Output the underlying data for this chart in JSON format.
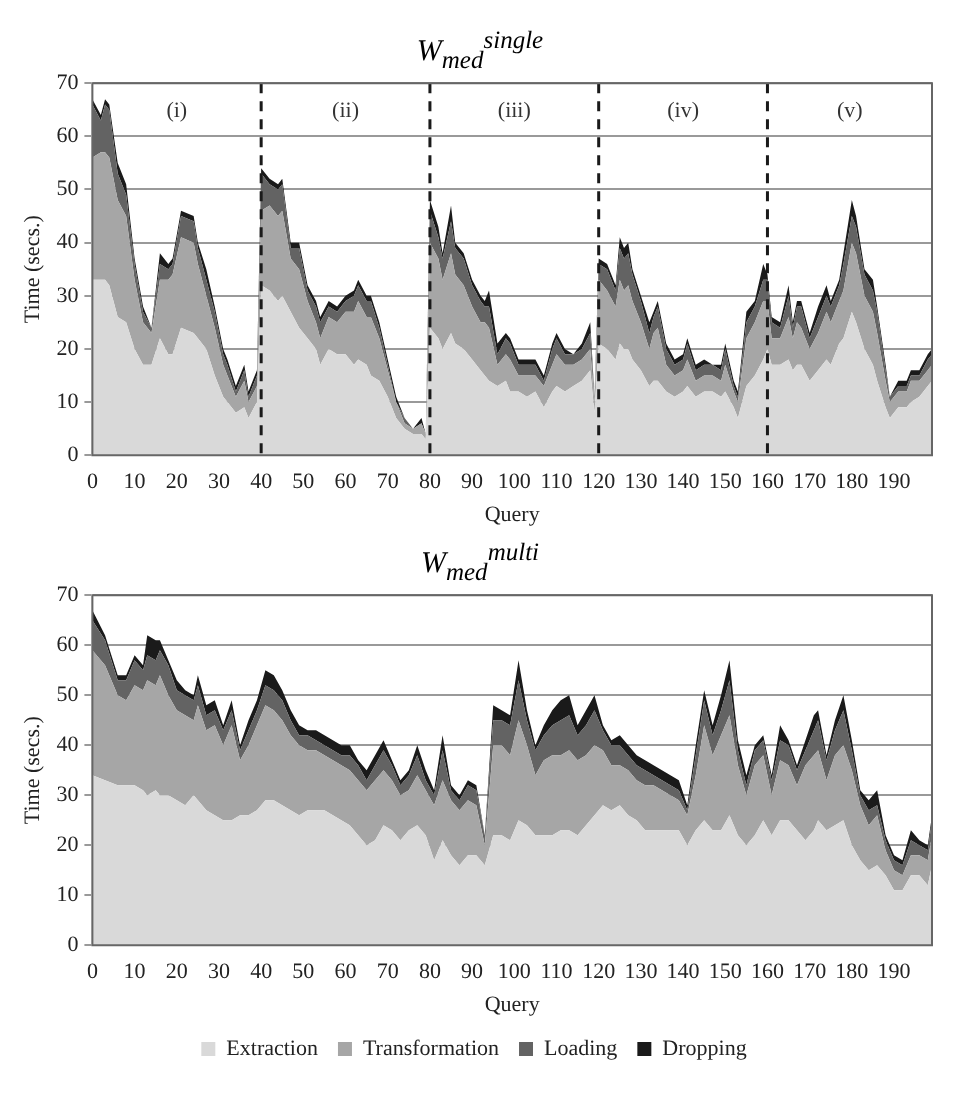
{
  "chart_data": [
    {
      "type": "area",
      "stacked": true,
      "title": "W$_{med}$$^{single}$",
      "xlabel": "Query",
      "ylabel": "Time (secs.)",
      "xlim": [
        0,
        199
      ],
      "xticks": [
        0,
        10,
        20,
        30,
        40,
        50,
        60,
        70,
        80,
        90,
        100,
        110,
        120,
        130,
        140,
        150,
        160,
        170,
        180,
        190
      ],
      "ylim": [
        0,
        70
      ],
      "yticks": [
        0,
        10,
        20,
        30,
        40,
        50,
        60,
        70
      ],
      "grid": "y",
      "legend": false,
      "x": [
        0,
        2,
        3,
        4,
        6,
        8,
        10,
        12,
        14,
        16,
        18,
        19,
        21,
        24,
        25,
        27,
        29,
        31,
        32,
        34,
        36,
        37,
        39,
        40,
        42,
        44,
        45,
        47,
        49,
        51,
        53,
        54,
        56,
        58,
        60,
        62,
        63,
        65,
        66,
        68,
        70,
        72,
        74,
        76,
        78,
        79,
        80,
        82,
        83,
        85,
        86,
        88,
        90,
        92,
        93,
        94,
        96,
        98,
        99,
        101,
        103,
        105,
        107,
        109,
        110,
        112,
        114,
        116,
        118,
        119,
        120,
        122,
        124,
        125,
        126,
        127,
        128,
        130,
        132,
        133,
        134,
        136,
        138,
        140,
        141,
        143,
        145,
        147,
        149,
        150,
        152,
        153,
        155,
        157,
        159,
        160,
        161,
        163,
        165,
        166,
        167,
        168,
        170,
        172,
        174,
        175,
        177,
        178,
        180,
        181,
        183,
        185,
        186,
        188,
        189,
        191,
        193,
        194,
        196,
        198,
        199
      ],
      "series": [
        {
          "color": "#d9d9d9",
          "values": [
            33,
            33,
            33,
            32,
            26,
            25,
            20,
            17,
            17,
            22,
            19,
            19,
            24,
            23,
            22,
            20,
            15,
            11,
            10,
            8,
            9,
            7,
            10,
            32,
            31,
            29,
            30,
            27,
            24,
            22,
            20,
            17,
            20,
            19,
            19,
            17,
            18,
            17,
            15,
            14,
            11,
            7,
            5,
            4,
            4,
            3,
            24,
            22,
            20,
            23,
            21,
            20,
            18,
            16,
            15,
            14,
            13,
            14,
            12,
            12,
            11,
            12,
            9,
            12,
            13,
            12,
            13,
            14,
            16,
            8,
            21,
            20,
            18,
            21,
            20,
            20,
            18,
            16,
            13,
            14,
            14,
            12,
            11,
            12,
            13,
            11,
            12,
            12,
            11,
            12,
            9,
            7,
            13,
            15,
            18,
            20,
            17,
            17,
            18,
            16,
            17,
            17,
            14,
            16,
            18,
            17,
            21,
            22,
            27,
            25,
            20,
            17,
            14,
            9,
            7,
            9,
            9,
            10,
            11,
            13,
            14
          ]
        },
        {
          "color": "#a6a6a6",
          "values": [
            23,
            24,
            24,
            24,
            22,
            20,
            13,
            8,
            6,
            11,
            14,
            15,
            17,
            17,
            14,
            10,
            9,
            6,
            5,
            3,
            5,
            3,
            3,
            14,
            16,
            16,
            16,
            10,
            11,
            7,
            5,
            5,
            6,
            6,
            8,
            10,
            11,
            9,
            11,
            8,
            5,
            3,
            1,
            1,
            2,
            1,
            16,
            15,
            13,
            15,
            13,
            12,
            10,
            9,
            10,
            10,
            4,
            5,
            6,
            3,
            4,
            3,
            4,
            5,
            6,
            5,
            4,
            4,
            4,
            2,
            12,
            11,
            10,
            12,
            11,
            12,
            11,
            9,
            7,
            9,
            10,
            5,
            4,
            4,
            5,
            3,
            3,
            3,
            3,
            5,
            3,
            3,
            9,
            10,
            11,
            9,
            5,
            5,
            8,
            6,
            8,
            7,
            6,
            7,
            9,
            8,
            8,
            9,
            13,
            13,
            10,
            10,
            9,
            5,
            3,
            3,
            3,
            4,
            3,
            3,
            3
          ]
        },
        {
          "color": "#636363",
          "values": [
            10,
            6,
            9,
            9,
            5,
            4,
            3,
            2,
            1,
            3,
            2,
            2,
            4,
            4,
            3,
            3,
            3,
            2,
            2,
            1,
            2,
            1,
            2,
            7,
            4,
            5,
            5,
            2,
            4,
            2,
            3,
            3,
            2,
            2,
            2,
            3,
            3,
            3,
            3,
            2,
            1,
            0,
            1,
            0,
            0,
            0,
            6,
            4,
            4,
            6,
            5,
            5,
            4,
            4,
            3,
            4,
            2,
            3,
            3,
            2,
            2,
            2,
            1,
            3,
            3,
            2,
            2,
            2,
            3,
            1,
            3,
            4,
            3,
            6,
            6,
            6,
            5,
            4,
            3,
            3,
            4,
            3,
            2,
            2,
            3,
            2,
            2,
            2,
            2,
            3,
            1,
            1,
            3,
            3,
            4,
            4,
            3,
            2,
            4,
            2,
            3,
            4,
            2,
            3,
            3,
            3,
            3,
            5,
            5,
            5,
            4,
            4,
            4,
            2,
            1,
            1,
            1,
            1,
            1,
            2,
            2
          ]
        },
        {
          "color": "#1a1a1a",
          "values": [
            1,
            1,
            1,
            1,
            2,
            2,
            1,
            1,
            0,
            2,
            1,
            1,
            1,
            1,
            1,
            2,
            1,
            1,
            1,
            1,
            1,
            1,
            1,
            1,
            1,
            1,
            1,
            1,
            1,
            1,
            1,
            1,
            1,
            1,
            1,
            1,
            1,
            1,
            1,
            1,
            1,
            1,
            0,
            0,
            1,
            0,
            2,
            2,
            1,
            3,
            1,
            1,
            1,
            1,
            1,
            3,
            2,
            1,
            1,
            1,
            1,
            1,
            1,
            1,
            1,
            1,
            0,
            1,
            2,
            0,
            1,
            1,
            1,
            2,
            2,
            2,
            1,
            1,
            2,
            1,
            1,
            1,
            1,
            1,
            1,
            1,
            1,
            0,
            1,
            1,
            1,
            1,
            2,
            1,
            3,
            1,
            1,
            1,
            2,
            1,
            1,
            1,
            1,
            2,
            2,
            1,
            1,
            2,
            3,
            2,
            1,
            2,
            1,
            1,
            0,
            1,
            1,
            1,
            1,
            1,
            1
          ]
        }
      ],
      "ref_lines": [
        {
          "axis": "x",
          "value": 40,
          "color": "#1a1a1a",
          "line_style": "dashed"
        },
        {
          "axis": "x",
          "value": 80,
          "color": "#1a1a1a",
          "line_style": "dashed"
        },
        {
          "axis": "x",
          "value": 120,
          "color": "#1a1a1a",
          "line_style": "dashed"
        },
        {
          "axis": "x",
          "value": 160,
          "color": "#1a1a1a",
          "line_style": "dashed"
        }
      ],
      "annotations": [
        "(i)",
        "(ii)",
        "(iii)",
        "(iv)",
        "(v)"
      ]
    },
    {
      "type": "area",
      "stacked": true,
      "title": "W$_{med}$$^{multi}$",
      "xlabel": "Query",
      "ylabel": "Time (secs.)",
      "xlim": [
        0,
        199
      ],
      "xticks": [
        0,
        10,
        20,
        30,
        40,
        50,
        60,
        70,
        80,
        90,
        100,
        110,
        120,
        130,
        140,
        150,
        160,
        170,
        180,
        190
      ],
      "ylim": [
        0,
        70
      ],
      "yticks": [
        0,
        10,
        20,
        30,
        40,
        50,
        60,
        70
      ],
      "grid": "y",
      "legend": "bottom",
      "x": [
        0,
        3,
        6,
        8,
        10,
        12,
        13,
        15,
        16,
        18,
        20,
        22,
        24,
        25,
        27,
        29,
        31,
        33,
        35,
        37,
        39,
        41,
        43,
        45,
        47,
        49,
        51,
        53,
        55,
        57,
        59,
        61,
        63,
        65,
        67,
        69,
        71,
        73,
        75,
        77,
        79,
        81,
        83,
        85,
        87,
        89,
        91,
        93,
        95,
        97,
        99,
        101,
        103,
        105,
        107,
        109,
        111,
        113,
        115,
        117,
        119,
        121,
        123,
        125,
        127,
        129,
        131,
        133,
        135,
        137,
        139,
        141,
        143,
        145,
        147,
        149,
        151,
        153,
        155,
        157,
        159,
        161,
        163,
        165,
        167,
        169,
        171,
        172,
        174,
        176,
        178,
        180,
        182,
        184,
        186,
        188,
        190,
        192,
        194,
        196,
        198,
        199
      ],
      "series": [
        {
          "name": "Extraction",
          "color": "#d9d9d9",
          "values": [
            34,
            33,
            32,
            32,
            32,
            31,
            30,
            31,
            30,
            30,
            29,
            28,
            30,
            29,
            27,
            26,
            25,
            25,
            26,
            26,
            27,
            29,
            29,
            28,
            27,
            26,
            27,
            27,
            27,
            26,
            25,
            24,
            22,
            20,
            21,
            24,
            23,
            21,
            23,
            24,
            22,
            17,
            21,
            18,
            16,
            18,
            18,
            16,
            22,
            22,
            21,
            25,
            24,
            22,
            22,
            22,
            23,
            23,
            22,
            24,
            26,
            28,
            27,
            28,
            26,
            25,
            23,
            23,
            23,
            23,
            23,
            20,
            23,
            25,
            23,
            23,
            26,
            22,
            20,
            22,
            25,
            22,
            25,
            25,
            23,
            21,
            23,
            25,
            23,
            24,
            25,
            20,
            17,
            15,
            16,
            14,
            11,
            11,
            14,
            14,
            12,
            16
          ]
        },
        {
          "name": "Transformation",
          "color": "#a6a6a6",
          "values": [
            25,
            23,
            18,
            17,
            20,
            20,
            23,
            21,
            24,
            20,
            18,
            18,
            15,
            19,
            16,
            18,
            15,
            19,
            11,
            14,
            17,
            19,
            18,
            17,
            15,
            14,
            12,
            12,
            11,
            11,
            11,
            11,
            11,
            11,
            12,
            11,
            10,
            9,
            8,
            10,
            9,
            11,
            12,
            11,
            11,
            11,
            10,
            4,
            18,
            18,
            17,
            20,
            16,
            12,
            15,
            16,
            15,
            16,
            15,
            14,
            14,
            11,
            9,
            8,
            9,
            8,
            9,
            9,
            8,
            7,
            6,
            6,
            11,
            19,
            15,
            19,
            20,
            14,
            10,
            14,
            13,
            8,
            12,
            11,
            9,
            15,
            15,
            14,
            10,
            14,
            15,
            15,
            11,
            9,
            10,
            5,
            4,
            3,
            4,
            4,
            5,
            6
          ]
        },
        {
          "name": "Loading",
          "color": "#636363",
          "values": [
            6,
            5,
            3,
            4,
            5,
            4,
            5,
            5,
            5,
            6,
            4,
            4,
            4,
            4,
            3,
            3,
            3,
            3,
            2,
            3,
            3,
            4,
            4,
            4,
            3,
            2,
            3,
            2,
            2,
            2,
            2,
            3,
            3,
            2,
            3,
            4,
            3,
            2,
            3,
            4,
            2,
            2,
            6,
            2,
            2,
            3,
            3,
            2,
            5,
            5,
            6,
            8,
            5,
            5,
            5,
            6,
            7,
            7,
            5,
            6,
            7,
            4,
            4,
            4,
            3,
            3,
            3,
            2,
            2,
            2,
            2,
            1,
            4,
            5,
            4,
            5,
            7,
            3,
            2,
            3,
            3,
            3,
            4,
            4,
            3,
            3,
            5,
            6,
            4,
            5,
            7,
            4,
            2,
            3,
            2,
            2,
            2,
            2,
            3,
            2,
            2,
            3
          ]
        },
        {
          "name": "Dropping",
          "color": "#1a1a1a",
          "values": [
            2,
            1,
            1,
            1,
            1,
            1,
            4,
            4,
            2,
            1,
            2,
            1,
            1,
            2,
            2,
            2,
            1,
            2,
            1,
            2,
            2,
            3,
            3,
            2,
            2,
            2,
            1,
            2,
            2,
            2,
            2,
            2,
            1,
            2,
            2,
            2,
            1,
            1,
            1,
            2,
            2,
            1,
            3,
            1,
            1,
            1,
            1,
            0,
            3,
            2,
            2,
            4,
            2,
            1,
            2,
            3,
            4,
            4,
            2,
            3,
            3,
            1,
            1,
            2,
            2,
            2,
            2,
            2,
            2,
            2,
            2,
            1,
            2,
            2,
            2,
            3,
            4,
            2,
            2,
            1,
            1,
            1,
            3,
            1,
            1,
            2,
            3,
            2,
            1,
            2,
            3,
            2,
            1,
            2,
            3,
            1,
            1,
            1,
            2,
            1,
            1,
            1
          ]
        }
      ]
    }
  ]
}
